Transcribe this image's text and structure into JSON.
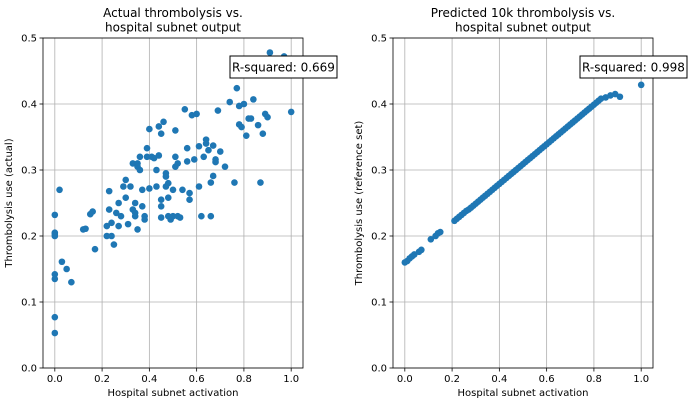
{
  "chart_data": [
    {
      "type": "scatter",
      "title": "Actual thrombolysis vs.\nhospital subnet output",
      "xlabel": "Hospital subnet activation",
      "ylabel": "Thrombolysis use (actual)",
      "xlim": [
        -0.05,
        1.05
      ],
      "ylim": [
        0.0,
        0.5
      ],
      "xticks": [
        "0.0",
        "0.2",
        "0.4",
        "0.6",
        "0.8",
        "1.0"
      ],
      "yticks": [
        "0.0",
        "0.1",
        "0.2",
        "0.3",
        "0.4",
        "0.5"
      ],
      "grid": true,
      "annotation": "R-squared: 0.669",
      "color": "#1f77b4",
      "points": [
        [
          0.0,
          0.232
        ],
        [
          0.0,
          0.205
        ],
        [
          0.0,
          0.203
        ],
        [
          0.0,
          0.2
        ],
        [
          0.0,
          0.142
        ],
        [
          0.0,
          0.135
        ],
        [
          0.0,
          0.077
        ],
        [
          0.0,
          0.053
        ],
        [
          0.02,
          0.27
        ],
        [
          0.03,
          0.161
        ],
        [
          0.05,
          0.15
        ],
        [
          0.07,
          0.13
        ],
        [
          0.12,
          0.21
        ],
        [
          0.13,
          0.211
        ],
        [
          0.15,
          0.233
        ],
        [
          0.16,
          0.237
        ],
        [
          0.17,
          0.18
        ],
        [
          0.22,
          0.2
        ],
        [
          0.22,
          0.215
        ],
        [
          0.23,
          0.268
        ],
        [
          0.23,
          0.24
        ],
        [
          0.24,
          0.22
        ],
        [
          0.24,
          0.2
        ],
        [
          0.25,
          0.187
        ],
        [
          0.26,
          0.235
        ],
        [
          0.27,
          0.25
        ],
        [
          0.27,
          0.215
        ],
        [
          0.28,
          0.23
        ],
        [
          0.29,
          0.275
        ],
        [
          0.3,
          0.285
        ],
        [
          0.3,
          0.258
        ],
        [
          0.31,
          0.218
        ],
        [
          0.32,
          0.275
        ],
        [
          0.33,
          0.24
        ],
        [
          0.33,
          0.31
        ],
        [
          0.34,
          0.25
        ],
        [
          0.34,
          0.235
        ],
        [
          0.34,
          0.23
        ],
        [
          0.35,
          0.31
        ],
        [
          0.35,
          0.305
        ],
        [
          0.35,
          0.21
        ],
        [
          0.36,
          0.32
        ],
        [
          0.36,
          0.3
        ],
        [
          0.37,
          0.27
        ],
        [
          0.37,
          0.245
        ],
        [
          0.38,
          0.23
        ],
        [
          0.38,
          0.225
        ],
        [
          0.39,
          0.333
        ],
        [
          0.39,
          0.32
        ],
        [
          0.4,
          0.362
        ],
        [
          0.4,
          0.272
        ],
        [
          0.41,
          0.32
        ],
        [
          0.42,
          0.318
        ],
        [
          0.43,
          0.3
        ],
        [
          0.43,
          0.275
        ],
        [
          0.44,
          0.366
        ],
        [
          0.44,
          0.322
        ],
        [
          0.45,
          0.355
        ],
        [
          0.45,
          0.255
        ],
        [
          0.45,
          0.245
        ],
        [
          0.45,
          0.228
        ],
        [
          0.46,
          0.373
        ],
        [
          0.47,
          0.295
        ],
        [
          0.47,
          0.29
        ],
        [
          0.47,
          0.275
        ],
        [
          0.48,
          0.28
        ],
        [
          0.48,
          0.258
        ],
        [
          0.48,
          0.23
        ],
        [
          0.49,
          0.225
        ],
        [
          0.5,
          0.27
        ],
        [
          0.5,
          0.23
        ],
        [
          0.51,
          0.36
        ],
        [
          0.51,
          0.32
        ],
        [
          0.51,
          0.305
        ],
        [
          0.52,
          0.31
        ],
        [
          0.52,
          0.23
        ],
        [
          0.53,
          0.228
        ],
        [
          0.54,
          0.27
        ],
        [
          0.55,
          0.392
        ],
        [
          0.56,
          0.313
        ],
        [
          0.56,
          0.333
        ],
        [
          0.57,
          0.265
        ],
        [
          0.57,
          0.255
        ],
        [
          0.58,
          0.383
        ],
        [
          0.59,
          0.316
        ],
        [
          0.6,
          0.385
        ],
        [
          0.61,
          0.336
        ],
        [
          0.61,
          0.275
        ],
        [
          0.62,
          0.23
        ],
        [
          0.63,
          0.32
        ],
        [
          0.64,
          0.346
        ],
        [
          0.64,
          0.34
        ],
        [
          0.65,
          0.33
        ],
        [
          0.66,
          0.23
        ],
        [
          0.66,
          0.281
        ],
        [
          0.67,
          0.337
        ],
        [
          0.67,
          0.291
        ],
        [
          0.68,
          0.316
        ],
        [
          0.68,
          0.312
        ],
        [
          0.69,
          0.39
        ],
        [
          0.7,
          0.328
        ],
        [
          0.72,
          0.305
        ],
        [
          0.74,
          0.403
        ],
        [
          0.76,
          0.281
        ],
        [
          0.77,
          0.424
        ],
        [
          0.78,
          0.397
        ],
        [
          0.78,
          0.369
        ],
        [
          0.79,
          0.365
        ],
        [
          0.8,
          0.4
        ],
        [
          0.81,
          0.352
        ],
        [
          0.82,
          0.378
        ],
        [
          0.83,
          0.378
        ],
        [
          0.84,
          0.407
        ],
        [
          0.86,
          0.368
        ],
        [
          0.87,
          0.281
        ],
        [
          0.88,
          0.355
        ],
        [
          0.89,
          0.385
        ],
        [
          0.9,
          0.38
        ],
        [
          0.91,
          0.478
        ],
        [
          0.97,
          0.472
        ],
        [
          1.0,
          0.388
        ]
      ]
    },
    {
      "type": "scatter",
      "title": "Predicted 10k thrombolysis vs.\nhospital subnet output",
      "xlabel": "Hospital subnet activation",
      "ylabel": "Thrombolysis use (reference set)",
      "xlim": [
        -0.05,
        1.05
      ],
      "ylim": [
        0.0,
        0.5
      ],
      "xticks": [
        "0.0",
        "0.2",
        "0.4",
        "0.6",
        "0.8",
        "1.0"
      ],
      "yticks": [
        "0.0",
        "0.1",
        "0.2",
        "0.3",
        "0.4",
        "0.5"
      ],
      "grid": true,
      "annotation": "R-squared: 0.998",
      "color": "#1f77b4",
      "points": [
        [
          0.0,
          0.16
        ],
        [
          0.01,
          0.162
        ],
        [
          0.02,
          0.166
        ],
        [
          0.03,
          0.169
        ],
        [
          0.04,
          0.172
        ],
        [
          0.06,
          0.176
        ],
        [
          0.07,
          0.179
        ],
        [
          0.11,
          0.195
        ],
        [
          0.13,
          0.2
        ],
        [
          0.14,
          0.204
        ],
        [
          0.15,
          0.206
        ],
        [
          0.21,
          0.223
        ],
        [
          0.22,
          0.226
        ],
        [
          0.23,
          0.229
        ],
        [
          0.24,
          0.232
        ],
        [
          0.25,
          0.235
        ],
        [
          0.26,
          0.238
        ],
        [
          0.27,
          0.24
        ],
        [
          0.28,
          0.243
        ],
        [
          0.29,
          0.246
        ],
        [
          0.3,
          0.249
        ],
        [
          0.31,
          0.252
        ],
        [
          0.32,
          0.255
        ],
        [
          0.33,
          0.258
        ],
        [
          0.34,
          0.261
        ],
        [
          0.35,
          0.264
        ],
        [
          0.36,
          0.267
        ],
        [
          0.37,
          0.27
        ],
        [
          0.38,
          0.273
        ],
        [
          0.39,
          0.276
        ],
        [
          0.4,
          0.279
        ],
        [
          0.41,
          0.282
        ],
        [
          0.42,
          0.285
        ],
        [
          0.43,
          0.288
        ],
        [
          0.44,
          0.291
        ],
        [
          0.45,
          0.294
        ],
        [
          0.46,
          0.297
        ],
        [
          0.47,
          0.3
        ],
        [
          0.48,
          0.303
        ],
        [
          0.49,
          0.306
        ],
        [
          0.5,
          0.309
        ],
        [
          0.51,
          0.312
        ],
        [
          0.52,
          0.315
        ],
        [
          0.53,
          0.318
        ],
        [
          0.54,
          0.321
        ],
        [
          0.55,
          0.324
        ],
        [
          0.56,
          0.327
        ],
        [
          0.57,
          0.33
        ],
        [
          0.58,
          0.333
        ],
        [
          0.59,
          0.336
        ],
        [
          0.6,
          0.339
        ],
        [
          0.61,
          0.342
        ],
        [
          0.62,
          0.345
        ],
        [
          0.63,
          0.348
        ],
        [
          0.64,
          0.351
        ],
        [
          0.65,
          0.354
        ],
        [
          0.66,
          0.357
        ],
        [
          0.67,
          0.36
        ],
        [
          0.68,
          0.363
        ],
        [
          0.69,
          0.366
        ],
        [
          0.7,
          0.369
        ],
        [
          0.71,
          0.372
        ],
        [
          0.72,
          0.375
        ],
        [
          0.73,
          0.378
        ],
        [
          0.74,
          0.381
        ],
        [
          0.75,
          0.384
        ],
        [
          0.76,
          0.387
        ],
        [
          0.77,
          0.39
        ],
        [
          0.78,
          0.393
        ],
        [
          0.79,
          0.396
        ],
        [
          0.8,
          0.399
        ],
        [
          0.81,
          0.402
        ],
        [
          0.82,
          0.405
        ],
        [
          0.83,
          0.408
        ],
        [
          0.85,
          0.41
        ],
        [
          0.87,
          0.413
        ],
        [
          0.89,
          0.415
        ],
        [
          0.91,
          0.411
        ],
        [
          1.0,
          0.429
        ]
      ]
    }
  ]
}
